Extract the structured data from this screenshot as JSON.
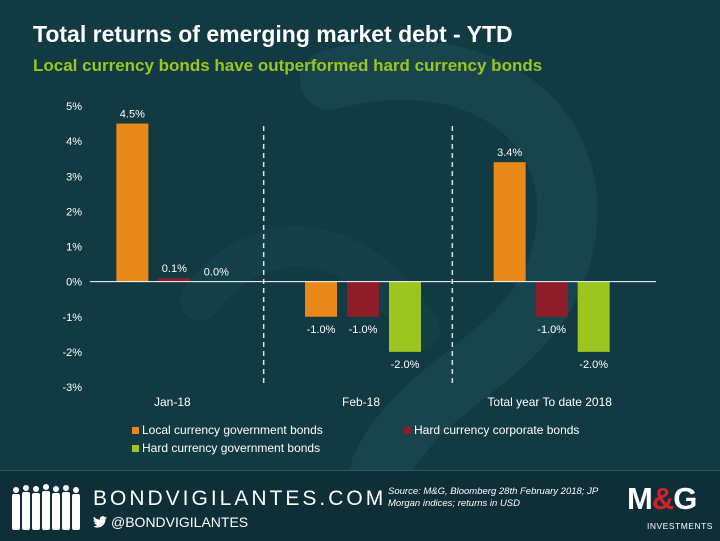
{
  "header": {
    "title": "Total returns of emerging market debt - YTD",
    "subtitle": "Local currency bonds have outperformed hard currency bonds"
  },
  "chart_data": {
    "type": "bar",
    "categories": [
      "Jan-18",
      "Feb-18",
      "Total year To date 2018"
    ],
    "series": [
      {
        "name": "Local currency government bonds",
        "color": "#e8891a",
        "values": [
          4.5,
          -1.0,
          3.4
        ],
        "labels": [
          "4.5%",
          "-1.0%",
          "3.4%"
        ]
      },
      {
        "name": "Hard currency corporate bonds",
        "color": "#8e1f2a",
        "values": [
          0.1,
          -1.0,
          -1.0
        ],
        "labels": [
          "0.1%",
          "-1.0%",
          "-1.0%"
        ]
      },
      {
        "name": "Hard currency government bonds",
        "color": "#9cc51f",
        "values": [
          0.0,
          -2.0,
          -2.0
        ],
        "labels": [
          "0.0%",
          "-2.0%",
          "-2.0%"
        ]
      }
    ],
    "ylim": [
      -3,
      5
    ],
    "yticks": [
      5,
      4,
      3,
      2,
      1,
      0,
      -1,
      -2,
      -3
    ],
    "ytick_labels": [
      "5%",
      "4%",
      "3%",
      "2%",
      "1%",
      "0%",
      "-1%",
      "-2%",
      "-3%"
    ],
    "xlabel": "",
    "ylabel": "",
    "legend_position": "bottom"
  },
  "footer": {
    "brand": "BONDVIGILANTES.COM",
    "handle": "@BONDVIGILANTES",
    "source_text": "Source: M&G, Bloomberg 28th February 2018; JP Morgan indices; returns in USD",
    "logo_text": "M&G",
    "logo_sub": "INVESTMENTS",
    "colors": {
      "background": "#123a42",
      "accent_red": "#d5202a"
    }
  }
}
